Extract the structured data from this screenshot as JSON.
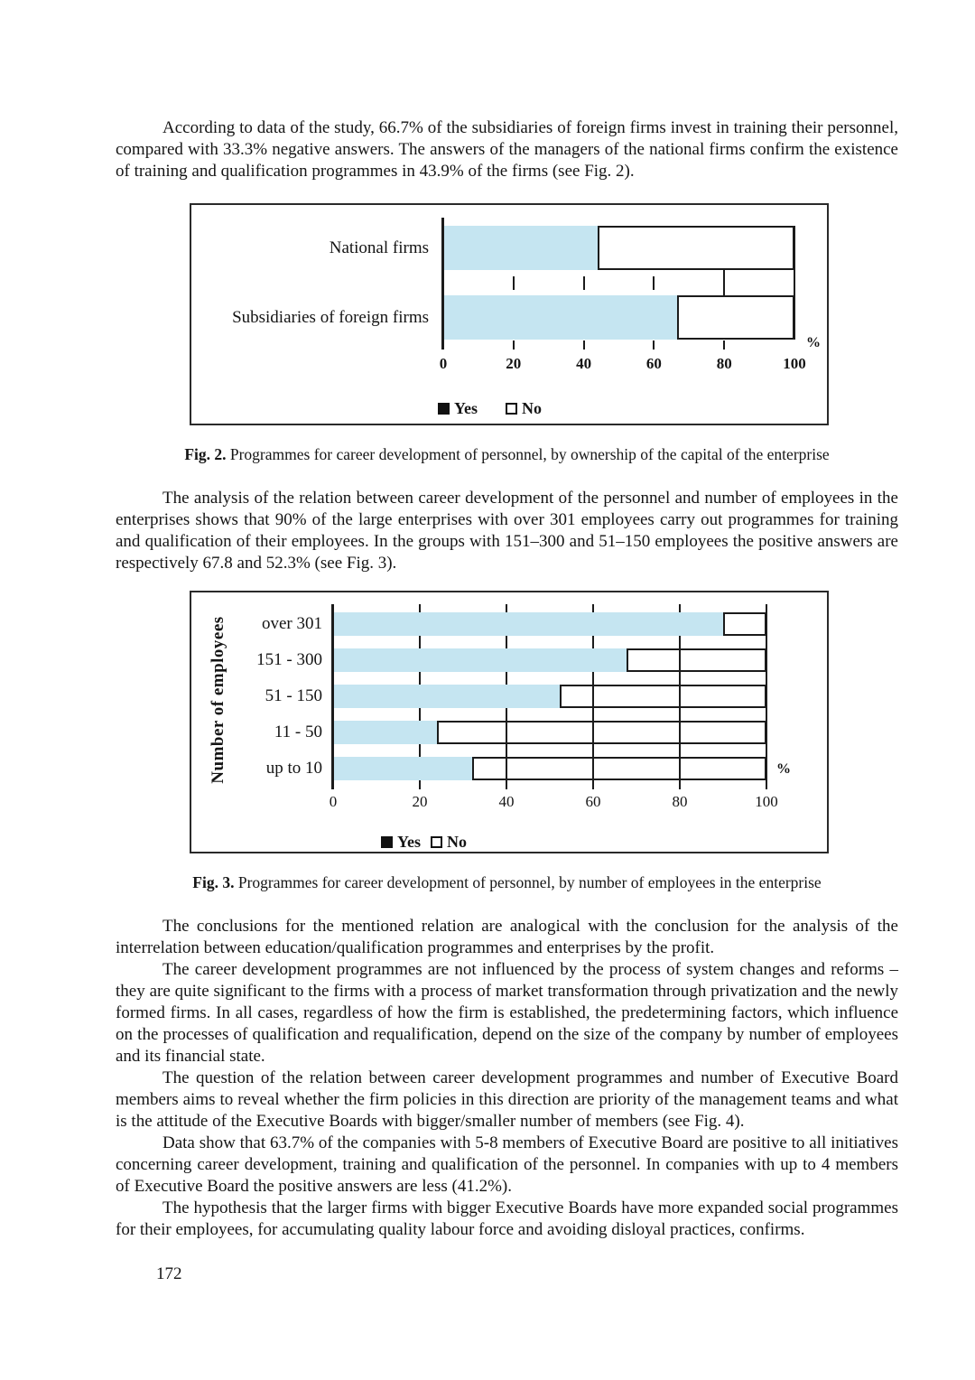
{
  "page_number": "172",
  "paragraphs": [
    "According to data of the study, 66.7% of the subsidiaries of foreign firms invest in training their personnel, compared with 33.3% negative answers. The answers of the managers of the national firms confirm the existence of training and qualification programmes in 43.9% of the firms (see Fig. 2).",
    "The analysis of the relation between career development of the personnel and number of employees in the enterprises shows that 90% of the large enterprises with over 301 employees carry out programmes for training and qualification of their employees. In the groups with 151–300 and 51–150 employees the positive answers are respectively 67.8 and 52.3% (see Fig. 3).",
    "The conclusions for the mentioned relation are analogical with the conclusion for the analysis of the interrelation between education/qualification programmes and enterprises by the profit.",
    "The career development programmes are not influenced by the process of system changes and reforms – they are quite significant to the firms with a process of market transformation through privatization and the newly formed firms. In all cases, regardless of how the firm is established, the predetermining factors, which influence on the processes of qualification and requalification, depend on the size of the company by number of employees and its financial state.",
    "The question of the relation between career development programmes and number of Executive Board members aims to reveal whether the firm policies in this direction are priority of the management teams and what is the attitude of the Executive Boards with bigger/smaller number of members (see Fig. 4).",
    "Data show that 63.7% of the companies with 5-8 members of Executive Board are positive to all initiatives concerning career development, training and qualification of the personnel. In companies with up to 4 members of Executive Board the positive answers are less (41.2%).",
    "The hypothesis that the larger firms with bigger Executive Boards have more expanded social programmes for their employees, for accumulating quality labour force and avoiding disloyal practices, confirms."
  ],
  "figure2": {
    "caption_label": "Fig. 2.",
    "caption_text": "Programmes for career development of personnel, by ownership of the capital of the enterprise",
    "chart_data": {
      "type": "bar",
      "orientation": "horizontal",
      "stacked": true,
      "categories": [
        "National firms",
        "Subsidiaries of foreign firms"
      ],
      "series": [
        {
          "name": "Yes",
          "values": [
            43.9,
            66.7
          ]
        },
        {
          "name": "No",
          "values": [
            56.1,
            33.3
          ]
        }
      ],
      "xlim": [
        0,
        100
      ],
      "xticks": [
        0,
        20,
        40,
        60,
        80,
        100
      ],
      "x_unit": "%",
      "legend": [
        "Yes",
        "No"
      ],
      "legend_position": "bottom",
      "colors": {
        "yes": "#c5e5f1",
        "no": "#ffffff",
        "line": "#1b1b1b"
      }
    }
  },
  "figure3": {
    "caption_label": "Fig. 3.",
    "caption_text": "Programmes for career development of personnel, by number of employees in the enterprise",
    "chart_data": {
      "type": "bar",
      "orientation": "horizontal",
      "stacked": true,
      "ylabel": "Number of employees",
      "categories": [
        "over 301",
        "151 - 300",
        "51 - 150",
        "11 - 50",
        "up to 10"
      ],
      "series": [
        {
          "name": "Yes",
          "values": [
            90,
            67.8,
            52.3,
            24,
            32
          ]
        },
        {
          "name": "No",
          "values": [
            10,
            32.2,
            47.7,
            76,
            68
          ]
        }
      ],
      "xlim": [
        0,
        100
      ],
      "xticks": [
        0,
        20,
        40,
        60,
        80,
        100
      ],
      "x_unit": "%",
      "legend": [
        "Yes",
        "No"
      ],
      "legend_position": "bottom",
      "grid": true,
      "colors": {
        "yes": "#c5e5f1",
        "no": "#ffffff",
        "line": "#1b1b1b"
      }
    }
  }
}
